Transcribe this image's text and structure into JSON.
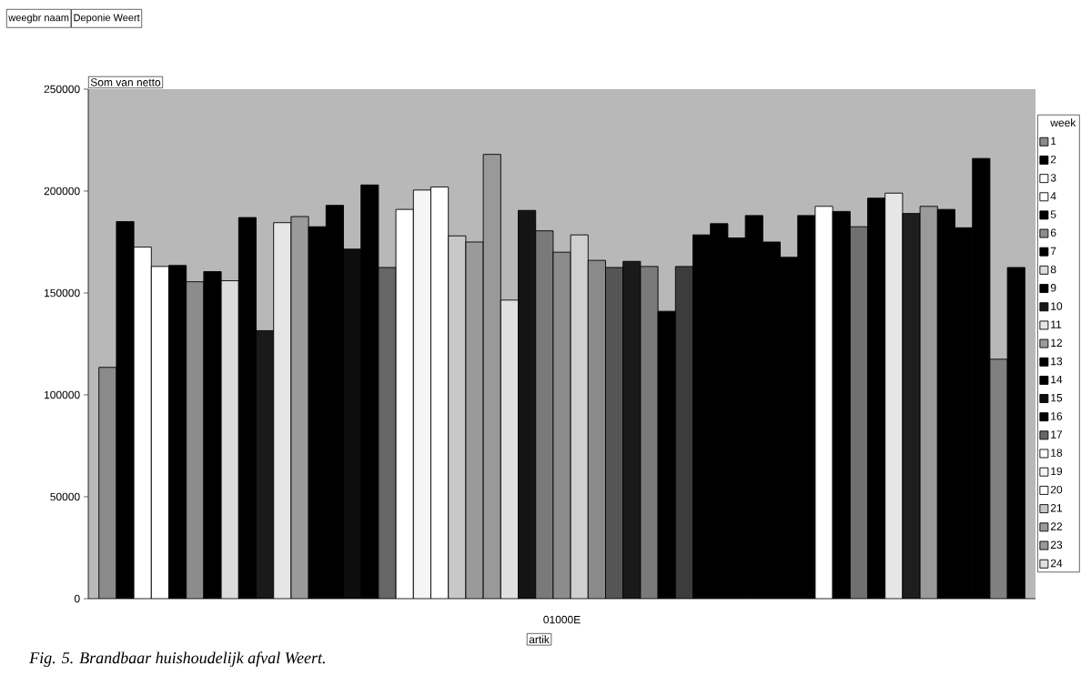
{
  "chart_data": {
    "type": "bar",
    "ylabel": "Som van netto",
    "xlabel": "artik",
    "legend_title": "week",
    "legend": "right",
    "annotations": [
      "weegbr naam",
      "Deponie Weert",
      "Fig. 5. Brandbaar huishoudelijk afval Weert."
    ],
    "categories": [
      "01000E"
    ],
    "ylim": [
      0,
      250000
    ],
    "yticks": [
      0,
      50000,
      100000,
      150000,
      200000,
      250000
    ],
    "series": [
      {
        "name": "1",
        "color": "#8a8a8a",
        "values": [
          113500
        ]
      },
      {
        "name": "2",
        "color": "#000000",
        "values": [
          185000
        ]
      },
      {
        "name": "3",
        "color": "#ffffff",
        "values": [
          172500
        ]
      },
      {
        "name": "4",
        "color": "#ffffff",
        "values": [
          163000
        ]
      },
      {
        "name": "5",
        "color": "#000000",
        "values": [
          163500
        ]
      },
      {
        "name": "6",
        "color": "#8c8c8c",
        "values": [
          155500
        ]
      },
      {
        "name": "7",
        "color": "#000000",
        "values": [
          160500
        ]
      },
      {
        "name": "8",
        "color": "#dcdcdc",
        "values": [
          156000
        ]
      },
      {
        "name": "9",
        "color": "#000000",
        "values": [
          187000
        ]
      },
      {
        "name": "10",
        "color": "#1a1a1a",
        "values": [
          131500
        ]
      },
      {
        "name": "11",
        "color": "#e6e6e6",
        "values": [
          184500
        ]
      },
      {
        "name": "12",
        "color": "#9a9a9a",
        "values": [
          187500
        ]
      },
      {
        "name": "13",
        "color": "#000000",
        "values": [
          182500
        ]
      },
      {
        "name": "14",
        "color": "#000000",
        "values": [
          193000
        ]
      },
      {
        "name": "15",
        "color": "#0d0d0d",
        "values": [
          171500
        ]
      },
      {
        "name": "16",
        "color": "#000000",
        "values": [
          203000
        ]
      },
      {
        "name": "17",
        "color": "#666666",
        "values": [
          162500
        ]
      },
      {
        "name": "18",
        "color": "#ffffff",
        "values": [
          191000
        ]
      },
      {
        "name": "19",
        "color": "#f5f5f5",
        "values": [
          200500
        ]
      },
      {
        "name": "20",
        "color": "#ffffff",
        "values": [
          202000
        ]
      },
      {
        "name": "21",
        "color": "#c8c8c8",
        "values": [
          178000
        ]
      },
      {
        "name": "22",
        "color": "#9a9a9a",
        "values": [
          175000
        ]
      },
      {
        "name": "23",
        "color": "#999999",
        "values": [
          218000
        ]
      },
      {
        "name": "24",
        "color": "#e0e0e0",
        "values": [
          146500
        ]
      },
      {
        "color": "#141414",
        "values": [
          190500
        ]
      },
      {
        "color": "#7a7a7a",
        "values": [
          180500
        ]
      },
      {
        "color": "#8c8c8c",
        "values": [
          170000
        ]
      },
      {
        "color": "#cfcfcf",
        "values": [
          178500
        ]
      },
      {
        "color": "#8a8a8a",
        "values": [
          166000
        ]
      },
      {
        "color": "#555555",
        "values": [
          162500
        ]
      },
      {
        "color": "#1a1a1a",
        "values": [
          165500
        ]
      },
      {
        "color": "#7a7a7a",
        "values": [
          163000
        ]
      },
      {
        "color": "#000000",
        "values": [
          141000
        ]
      },
      {
        "color": "#3c3c3c",
        "values": [
          163000
        ]
      },
      {
        "color": "#000000",
        "values": [
          178500
        ]
      },
      {
        "color": "#000000",
        "values": [
          184000
        ]
      },
      {
        "color": "#000000",
        "values": [
          177000
        ]
      },
      {
        "color": "#000000",
        "values": [
          188000
        ]
      },
      {
        "color": "#000000",
        "values": [
          175000
        ]
      },
      {
        "color": "#000000",
        "values": [
          167500
        ]
      },
      {
        "color": "#000000",
        "values": [
          188000
        ]
      },
      {
        "color": "#ffffff",
        "values": [
          192500
        ]
      },
      {
        "color": "#000000",
        "values": [
          190000
        ]
      },
      {
        "color": "#707070",
        "values": [
          182500
        ]
      },
      {
        "color": "#000000",
        "values": [
          196500
        ]
      },
      {
        "color": "#e6e6e6",
        "values": [
          199000
        ]
      },
      {
        "color": "#1e1e1e",
        "values": [
          189000
        ]
      },
      {
        "color": "#9a9a9a",
        "values": [
          192500
        ]
      },
      {
        "color": "#000000",
        "values": [
          191000
        ]
      },
      {
        "color": "#000000",
        "values": [
          182000
        ]
      },
      {
        "color": "#000000",
        "values": [
          216000
        ]
      },
      {
        "color": "#808080",
        "values": [
          117500
        ]
      },
      {
        "color": "#000000",
        "values": [
          162500
        ]
      }
    ]
  }
}
